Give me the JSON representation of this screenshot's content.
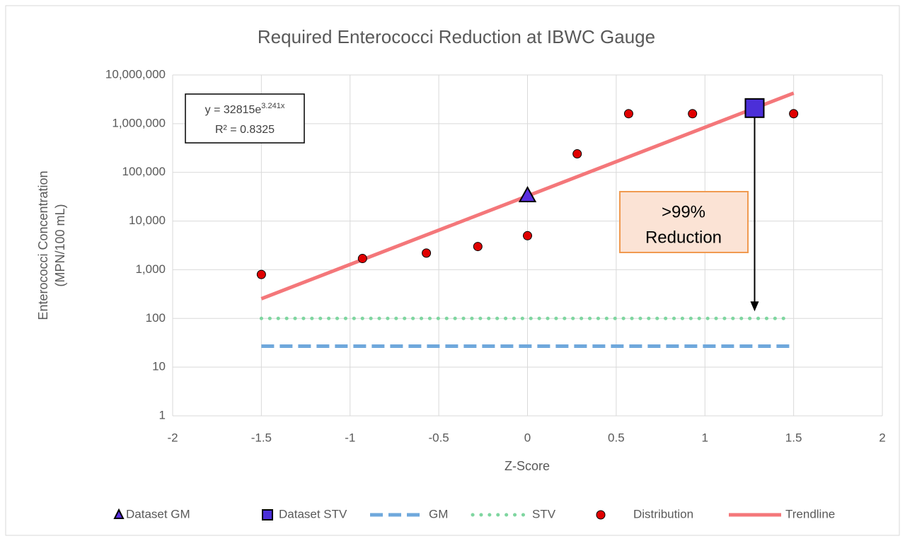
{
  "chart_data": {
    "type": "scatter",
    "title": "Required Enterococci Reduction at IBWC Gauge",
    "x_label": "Z-Score",
    "y_label": [
      "Enterococci Concentration",
      "(MPN/100 mL)"
    ],
    "xlim": [
      -2,
      2
    ],
    "xticks": [
      -2,
      -1.5,
      -1,
      -0.5,
      0,
      0.5,
      1,
      1.5,
      2
    ],
    "ylim": [
      1,
      10000000
    ],
    "y_scale": "log",
    "yticks": [
      1,
      10,
      100,
      {
        "value": 1000,
        "label": "1,000"
      },
      {
        "value": 10000,
        "label": "10,000"
      },
      {
        "value": 100000,
        "label": "100,000"
      },
      {
        "value": 1000000,
        "label": "1,000,000"
      },
      {
        "value": 10000000,
        "label": "10,000,000"
      }
    ],
    "grid": true,
    "legend": "bottom",
    "series": [
      {
        "name": "Dataset GM",
        "style": "triangle",
        "color": "#5a2ee0",
        "x": [
          0
        ],
        "values": [
          32815
        ]
      },
      {
        "name": "Dataset STV",
        "style": "square",
        "color": "#4b2fd8",
        "x": [
          1.28
        ],
        "values": [
          2090000
        ]
      },
      {
        "name": "GM",
        "style": "dashed",
        "color": "#6fa8dc",
        "x": [
          -1.5,
          1.5
        ],
        "values": [
          27,
          27
        ]
      },
      {
        "name": "STV",
        "style": "dotted",
        "color": "#7fd6a0",
        "x": [
          -1.5,
          1.45
        ],
        "values": [
          100,
          100
        ]
      },
      {
        "name": "Distribution",
        "style": "circle",
        "color": "#e00000",
        "x": [
          -1.5,
          -0.93,
          -0.57,
          -0.28,
          0,
          0.28,
          0.57,
          0.93,
          1.5
        ],
        "values": [
          800,
          1700,
          2200,
          3000,
          5000,
          240000,
          1600000,
          1600000,
          1600000
        ]
      },
      {
        "name": "Trendline",
        "style": "solid",
        "color": "#f4777a",
        "x": [
          -1.5,
          1.5
        ],
        "values": [
          254,
          4240000
        ]
      }
    ],
    "equation": {
      "base": "y = 32815e",
      "exponent": "3.241x",
      "r_squared": "R² = 0.8325"
    },
    "callout": [
      ">99%",
      "Reduction"
    ]
  }
}
